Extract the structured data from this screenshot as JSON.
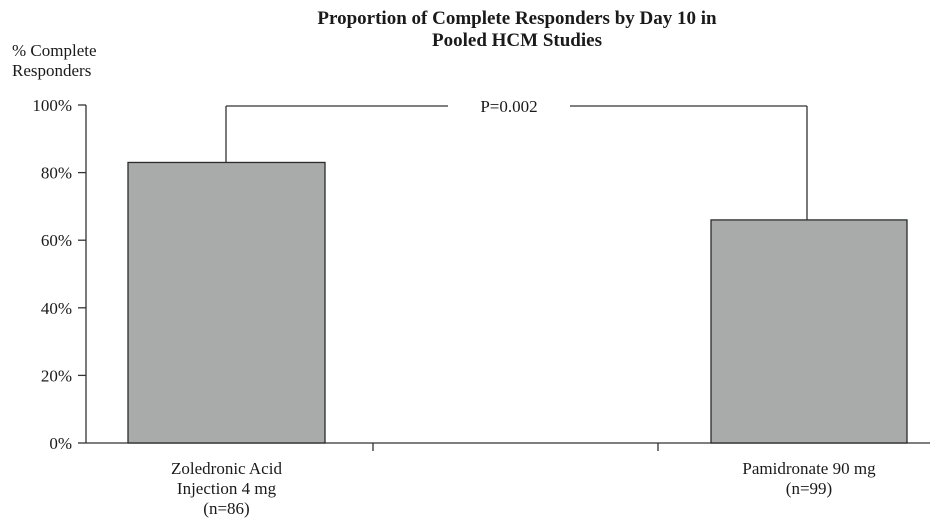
{
  "chart_data": {
    "type": "bar",
    "title": [
      "Proportion of Complete Responders by Day 10 in",
      "Pooled HCM Studies"
    ],
    "ylabel": [
      "% Complete",
      "Responders"
    ],
    "ylim": [
      0,
      100
    ],
    "yticks": [
      0,
      20,
      40,
      60,
      80,
      100
    ],
    "ytick_labels": [
      "0%",
      "20%",
      "40%",
      "60%",
      "80%",
      "100%"
    ],
    "categories": [
      [
        "Zoledronic Acid",
        "Injection 4 mg",
        "(n=86)"
      ],
      [
        "Pamidronate 90 mg",
        "(n=99)"
      ]
    ],
    "values": [
      83,
      66
    ],
    "bar_color": "#a9abab",
    "annotation": "P=0.002",
    "grid": false
  }
}
